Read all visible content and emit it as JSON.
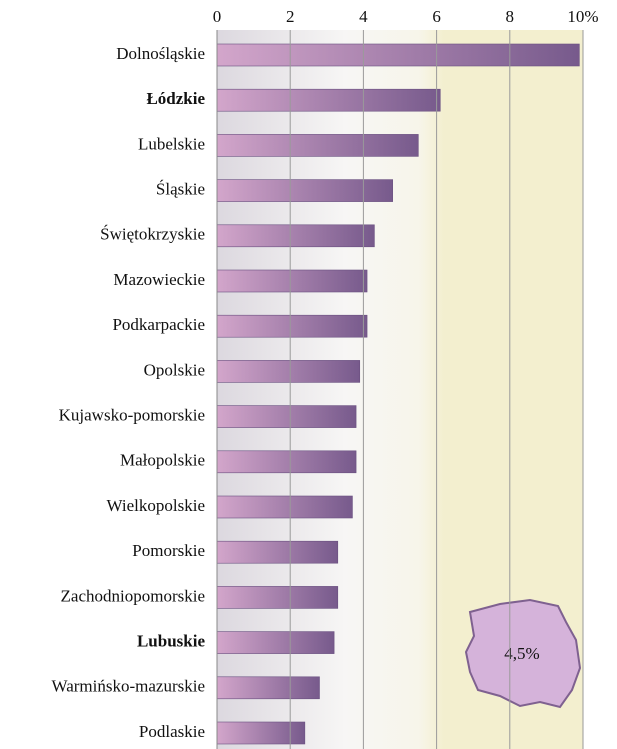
{
  "chart_data": {
    "type": "bar",
    "orientation": "horizontal",
    "categories": [
      "Dolnośląskie",
      "Łódzkie",
      "Lubelskie",
      "Śląskie",
      "Świętokrzyskie",
      "Mazowieckie",
      "Podkarpackie",
      "Opolskie",
      "Kujawsko-pomorskie",
      "Małopolskie",
      "Wielkopolskie",
      "Pomorskie",
      "Zachodniopomorskie",
      "Lubuskie",
      "Warmińsko-mazurskie",
      "Podlaskie"
    ],
    "values": [
      9.9,
      6.1,
      5.5,
      4.8,
      4.3,
      4.1,
      4.1,
      3.9,
      3.8,
      3.8,
      3.7,
      3.3,
      3.3,
      3.2,
      2.8,
      2.4
    ],
    "bold": [
      1,
      13
    ],
    "colors": [
      "#d3a6cb",
      "#775a8c"
    ],
    "xlim": [
      0,
      10
    ],
    "xticks": [
      0,
      2,
      4,
      6,
      8,
      {
        "value": 10,
        "label": "10%"
      }
    ],
    "grid": true,
    "annotation": "4,5%"
  }
}
